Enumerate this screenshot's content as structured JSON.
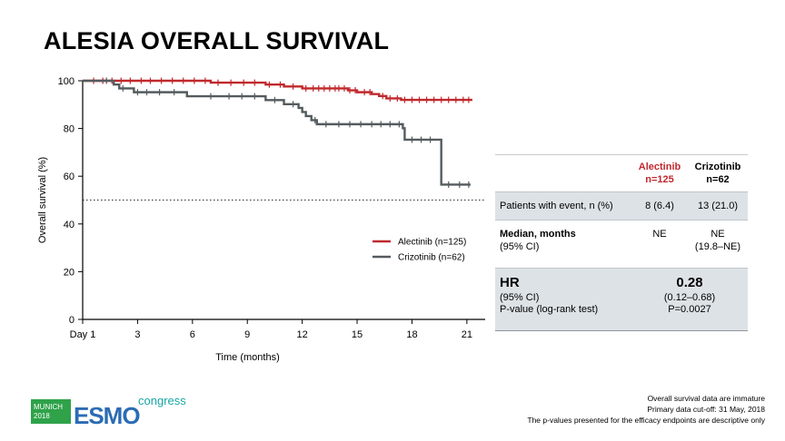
{
  "title": "ALESIA OVERALL SURVIVAL",
  "chart_data": {
    "type": "line",
    "title": "ALESIA OVERALL SURVIVAL",
    "xlabel": "Time (months)",
    "ylabel": "Overall survival (%)",
    "xlim": [
      0,
      22
    ],
    "ylim": [
      0,
      100
    ],
    "x_ticks": [
      0,
      3,
      6,
      9,
      12,
      15,
      18,
      21
    ],
    "x_tick_labels": [
      "Day 1",
      "3",
      "6",
      "9",
      "12",
      "15",
      "18",
      "21"
    ],
    "y_ticks": [
      0,
      20,
      40,
      60,
      80,
      100
    ],
    "y_tick_labels": [
      "0",
      "20",
      "40",
      "60",
      "80",
      "100"
    ],
    "reference_line": {
      "y": 50,
      "style": "dotted"
    },
    "series": [
      {
        "name": "Alectinib (n=125)",
        "color": "#c0282d",
        "steps": [
          [
            0,
            100
          ],
          [
            7,
            99.2
          ],
          [
            10,
            98.4
          ],
          [
            11,
            97.6
          ],
          [
            12,
            96.8
          ],
          [
            14.5,
            96.0
          ],
          [
            15,
            95.2
          ],
          [
            15.8,
            94.4
          ],
          [
            16.2,
            93.6
          ],
          [
            16.6,
            92.6
          ],
          [
            17.4,
            92.0
          ],
          [
            21.3,
            92.0
          ]
        ],
        "censor_times": [
          0.6,
          1.1,
          1.6,
          2.1,
          2.6,
          3.2,
          3.7,
          4.3,
          4.9,
          5.5,
          6.1,
          6.7,
          7.4,
          8.1,
          8.8,
          9.4,
          10.2,
          10.8,
          11.5,
          12.2,
          12.6,
          12.9,
          13.2,
          13.5,
          13.8,
          14.0,
          14.3,
          14.6,
          14.9,
          15.4,
          15.7,
          16.4,
          16.8,
          17.2,
          17.6,
          18.0,
          18.4,
          18.8,
          19.2,
          19.6,
          20.0,
          20.4,
          20.8,
          21.1
        ]
      },
      {
        "name": "Crizotinib (n=62)",
        "color": "#545b5f",
        "steps": [
          [
            0,
            100
          ],
          [
            1.7,
            98.4
          ],
          [
            2,
            96.8
          ],
          [
            2.8,
            95.2
          ],
          [
            5.7,
            93.5
          ],
          [
            10,
            91.9
          ],
          [
            11,
            90.2
          ],
          [
            11.8,
            88.6
          ],
          [
            12,
            86.9
          ],
          [
            12.2,
            85.2
          ],
          [
            12.5,
            83.5
          ],
          [
            12.8,
            81.8
          ],
          [
            17.5,
            80.1
          ],
          [
            17.6,
            75.3
          ],
          [
            19.6,
            56.5
          ],
          [
            21.2,
            56.5
          ]
        ],
        "censor_times": [
          1.3,
          2.2,
          3.0,
          3.5,
          4.2,
          5.0,
          7.0,
          8.0,
          8.7,
          9.4,
          10.5,
          11.5,
          12.7,
          13.3,
          14.0,
          14.6,
          15.2,
          15.8,
          16.3,
          16.8,
          17.3,
          18.0,
          18.5,
          19.0,
          20.0,
          20.6,
          21.1
        ]
      }
    ],
    "legend": {
      "position": "center-right",
      "entries": [
        "Alectinib (n=125)",
        "Crizotinib (n=62)"
      ]
    }
  },
  "table": {
    "col1_name": "Alectinib",
    "col1_n": "n=125",
    "col2_name": "Crizotinib",
    "col2_n": "n=62",
    "row1": {
      "label": "Patients with event, n (%)",
      "a": "8 (6.4)",
      "b": "13 (21.0)"
    },
    "row2": {
      "label": "Median, months",
      "sublabel": "(95% CI)",
      "a": "NE",
      "b1": "NE",
      "b2": "(19.8–NE)"
    },
    "row3": {
      "label": "HR",
      "sub1": "(95% CI)",
      "sub2": "P-value (log-rank test)",
      "value": "0.28",
      "ci": "(0.12–0.68)",
      "p": "P=0.0027"
    }
  },
  "logo": {
    "city": "MUNICH",
    "year": "2018",
    "brand": "ESMO",
    "suffix": "congress",
    "colors": {
      "green": "#2fa24a",
      "blue": "#2b6cb4",
      "teal": "#1aa5a5"
    }
  },
  "notes": [
    "Overall survival data are immature",
    "Primary data cut-off: 31 May, 2018",
    "The p-values presented for the efficacy endpoints are descriptive only"
  ]
}
